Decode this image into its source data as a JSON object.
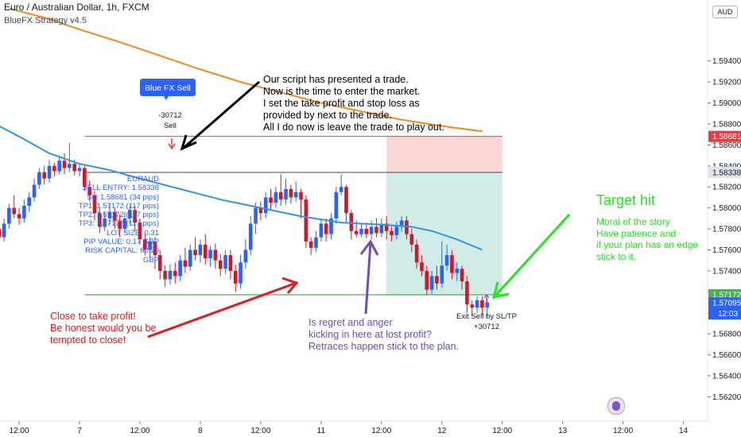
{
  "header": {
    "symbol_title": "Euro / Australian Dollar, 1h, FXCM",
    "indicator": "BlueFX Strategy v4.5",
    "currency_button": "AUD"
  },
  "signal": {
    "button": "Blue FX Sell",
    "value": "-30712",
    "label": "Sell"
  },
  "info_box": [
    "EURAUD",
    "SELL ENTRY: 1.58338",
    "SL: 1.58681 (34 pips)",
    "TP1: 1.57172 (117 pips)",
    "TP2: 1.57172 (117 pips)",
    "TP3: 1.57172 (117 pips)",
    "LOT SIZE: 0.31",
    "PIP VALUE: 0.17 GBP",
    "RISK CAPITAL: 60.29 GBP"
  ],
  "annotations": {
    "top_note": [
      "Our script has presented a trade.",
      "Now is the time to enter the market.",
      "I set the take profit and stop loss as",
      "provided by next to the trade.",
      "All I do now is leave the trade to play out."
    ],
    "red_note": [
      "Close to take profit!",
      "Be honest would you be",
      "tempted to close!"
    ],
    "purple_note": [
      "Is regret and anger",
      "kicking in here at lost profit?",
      "Retraces happen stick to the plan."
    ],
    "target_title": "Target hit",
    "green_note": [
      "Moral of the story",
      "Have patience and",
      "if your plan has an edge",
      "stick to it."
    ],
    "exit_label": "Exit Sell by SL/TP",
    "exit_value": "+30712"
  },
  "colors": {
    "up_candle": "#2962ff",
    "down_candle": "#d1172a",
    "ema_fast": "#3393e8",
    "ema_slow": "#f5891f",
    "stop_loss": "#f23645",
    "target": "#4caf50",
    "entry": "#434651",
    "annotation_red": "#e31b1b",
    "annotation_purple": "#6e4bb5",
    "annotation_green": "#22e622"
  },
  "chart_data": {
    "type": "candlestick",
    "y_axis": {
      "range": [
        1.5612,
        1.5992
      ],
      "ticks": [
        "1.59400",
        "1.59200",
        "1.59000",
        "1.58800",
        "1.58600",
        "1.58400",
        "1.58200",
        "1.58000",
        "1.57800",
        "1.57600",
        "1.57400",
        "1.57200",
        "1.57000",
        "1.56800",
        "1.56600",
        "1.56400",
        "1.56200"
      ]
    },
    "x_axis": {
      "ticks": [
        "12:00",
        "7",
        "12:00",
        "8",
        "12:00",
        "11",
        "12:00",
        "12",
        "12:00",
        "13",
        "12:00",
        "14"
      ],
      "tick_times": [
        -12,
        0,
        12,
        24,
        36,
        48,
        60,
        72,
        84,
        96,
        108,
        120
      ]
    },
    "price_levels": {
      "stop_loss": {
        "value": 1.58681,
        "label": "1.58681"
      },
      "entry": {
        "value": 1.58338,
        "label": "1.58338"
      },
      "take_profit": {
        "value": 1.57172,
        "label": "1.57172"
      },
      "last_price": {
        "value": 1.57095,
        "label": "1.57095"
      },
      "countdown": "12:03"
    },
    "candles": [
      [
        -27,
        1.5825,
        1.5808,
        1.5828,
        1.58
      ],
      [
        -26,
        1.5808,
        1.581,
        1.5818,
        1.5802
      ],
      [
        -25,
        1.581,
        1.5803,
        1.5814,
        1.5795
      ],
      [
        -24,
        1.5803,
        1.5792,
        1.581,
        1.5785
      ],
      [
        -23,
        1.5792,
        1.58,
        1.5805,
        1.5783
      ],
      [
        -22,
        1.58,
        1.5822,
        1.5826,
        1.5795
      ],
      [
        -21,
        1.5822,
        1.5832,
        1.5836,
        1.5815
      ],
      [
        -20,
        1.5832,
        1.5815,
        1.5838,
        1.5806
      ],
      [
        -19,
        1.5815,
        1.5805,
        1.582,
        1.58
      ],
      [
        -18,
        1.5805,
        1.5792,
        1.5812,
        1.5786
      ],
      [
        -17,
        1.5792,
        1.578,
        1.5796,
        1.5774
      ],
      [
        -16,
        1.578,
        1.5772,
        1.5786,
        1.5768
      ],
      [
        -15,
        1.5772,
        1.5785,
        1.579,
        1.5768
      ],
      [
        -14,
        1.5785,
        1.58,
        1.5804,
        1.578
      ],
      [
        -13,
        1.58,
        1.5794,
        1.5812,
        1.579
      ],
      [
        -12,
        1.5794,
        1.579,
        1.58,
        1.5784
      ],
      [
        -11,
        1.579,
        1.5802,
        1.5808,
        1.5786
      ],
      [
        -10,
        1.5802,
        1.581,
        1.5815,
        1.5796
      ],
      [
        -9,
        1.581,
        1.5822,
        1.5828,
        1.5806
      ],
      [
        -8,
        1.5822,
        1.5834,
        1.5838,
        1.5818
      ],
      [
        -7,
        1.5834,
        1.5828,
        1.584,
        1.5822
      ],
      [
        -6,
        1.5828,
        1.584,
        1.5846,
        1.5824
      ],
      [
        -5,
        1.584,
        1.5835,
        1.5843,
        1.583
      ],
      [
        -4,
        1.5835,
        1.5845,
        1.585,
        1.5832
      ],
      [
        -3,
        1.5845,
        1.5838,
        1.5852,
        1.5832
      ],
      [
        -2,
        1.5838,
        1.5842,
        1.5862,
        1.5834
      ],
      [
        -1,
        1.5842,
        1.5835,
        1.5846,
        1.5831
      ],
      [
        0,
        1.5835,
        1.5838,
        1.5842,
        1.583
      ],
      [
        1,
        1.5838,
        1.582,
        1.584,
        1.5816
      ],
      [
        2,
        1.582,
        1.5812,
        1.5826,
        1.5806
      ],
      [
        3,
        1.5812,
        1.5795,
        1.5816,
        1.5788
      ],
      [
        4,
        1.5795,
        1.5782,
        1.58,
        1.5776
      ],
      [
        5,
        1.5782,
        1.579,
        1.5796,
        1.5778
      ],
      [
        6,
        1.579,
        1.5796,
        1.5804,
        1.5784
      ],
      [
        7,
        1.5796,
        1.5788,
        1.58,
        1.578
      ],
      [
        8,
        1.5788,
        1.578,
        1.5794,
        1.5772
      ],
      [
        9,
        1.578,
        1.579,
        1.5796,
        1.5776
      ],
      [
        10,
        1.579,
        1.5798,
        1.5802,
        1.5785
      ],
      [
        11,
        1.5798,
        1.5786,
        1.5802,
        1.5778
      ],
      [
        12,
        1.5786,
        1.577,
        1.579,
        1.5765
      ],
      [
        13,
        1.577,
        1.576,
        1.5775,
        1.5755
      ],
      [
        14,
        1.576,
        1.5768,
        1.5772,
        1.5752
      ],
      [
        15,
        1.5768,
        1.5755,
        1.5772,
        1.5742
      ],
      [
        16,
        1.5755,
        1.574,
        1.576,
        1.5732
      ],
      [
        17,
        1.574,
        1.5732,
        1.5745,
        1.5725
      ],
      [
        18,
        1.5732,
        1.574,
        1.5746,
        1.5727
      ],
      [
        19,
        1.574,
        1.5735,
        1.5748,
        1.5728
      ],
      [
        20,
        1.5735,
        1.575,
        1.5755,
        1.573
      ],
      [
        21,
        1.575,
        1.5744,
        1.5762,
        1.5738
      ],
      [
        22,
        1.5744,
        1.576,
        1.5765,
        1.574
      ],
      [
        23,
        1.576,
        1.5755,
        1.5772,
        1.575
      ],
      [
        24,
        1.5755,
        1.5765,
        1.577,
        1.5748
      ],
      [
        25,
        1.5765,
        1.5752,
        1.5775,
        1.5746
      ],
      [
        26,
        1.5752,
        1.576,
        1.5764,
        1.5744
      ],
      [
        27,
        1.576,
        1.575,
        1.5766,
        1.5742
      ],
      [
        28,
        1.575,
        1.5742,
        1.5756,
        1.5735
      ],
      [
        29,
        1.5742,
        1.5755,
        1.576,
        1.5737
      ],
      [
        30,
        1.5755,
        1.574,
        1.576,
        1.5732
      ],
      [
        31,
        1.574,
        1.5728,
        1.5746,
        1.572
      ],
      [
        32,
        1.5728,
        1.5748,
        1.5755,
        1.5723
      ],
      [
        33,
        1.5748,
        1.576,
        1.577,
        1.5742
      ],
      [
        34,
        1.576,
        1.5785,
        1.5792,
        1.5755
      ],
      [
        35,
        1.5785,
        1.58,
        1.5805,
        1.5775
      ],
      [
        36,
        1.58,
        1.5795,
        1.5806,
        1.5788
      ],
      [
        37,
        1.5795,
        1.581,
        1.5815,
        1.579
      ],
      [
        38,
        1.581,
        1.5805,
        1.5818,
        1.5798
      ],
      [
        39,
        1.5805,
        1.5815,
        1.582,
        1.58
      ],
      [
        40,
        1.5815,
        1.5808,
        1.5832,
        1.5802
      ],
      [
        41,
        1.5808,
        1.5818,
        1.5828,
        1.5803
      ],
      [
        42,
        1.5818,
        1.581,
        1.5822,
        1.5804
      ],
      [
        43,
        1.581,
        1.5815,
        1.5825,
        1.5806
      ],
      [
        44,
        1.5815,
        1.5808,
        1.5818,
        1.579
      ],
      [
        45,
        1.5808,
        1.5768,
        1.5812,
        1.5762
      ],
      [
        46,
        1.5768,
        1.5762,
        1.5772,
        1.5755
      ],
      [
        47,
        1.5762,
        1.5772,
        1.5778,
        1.5758
      ],
      [
        48,
        1.5772,
        1.5785,
        1.579,
        1.5768
      ],
      [
        49,
        1.5785,
        1.5775,
        1.579,
        1.5768
      ],
      [
        50,
        1.5775,
        1.579,
        1.5795,
        1.577
      ],
      [
        51,
        1.579,
        1.5815,
        1.582,
        1.5785
      ],
      [
        52,
        1.5815,
        1.582,
        1.5832,
        1.5812
      ],
      [
        53,
        1.582,
        1.5795,
        1.5822,
        1.5785
      ],
      [
        54,
        1.5795,
        1.5778,
        1.5798,
        1.577
      ],
      [
        55,
        1.5778,
        1.5775,
        1.5788,
        1.5772
      ],
      [
        56,
        1.5775,
        1.578,
        1.5785,
        1.5772
      ],
      [
        57,
        1.578,
        1.5775,
        1.5786,
        1.5771
      ],
      [
        58,
        1.5775,
        1.5782,
        1.5788,
        1.577
      ],
      [
        59,
        1.5782,
        1.5776,
        1.579,
        1.5772
      ],
      [
        60,
        1.5776,
        1.5785,
        1.579,
        1.5772
      ],
      [
        61,
        1.5785,
        1.5778,
        1.5792,
        1.577
      ],
      [
        62,
        1.5778,
        1.5774,
        1.5782,
        1.5768
      ],
      [
        63,
        1.5774,
        1.5782,
        1.5787,
        1.577
      ],
      [
        64,
        1.5782,
        1.5788,
        1.5792,
        1.5777
      ],
      [
        65,
        1.5788,
        1.5775,
        1.5792,
        1.577
      ],
      [
        66,
        1.5775,
        1.5765,
        1.578,
        1.5758
      ],
      [
        67,
        1.5765,
        1.5748,
        1.577,
        1.5742
      ],
      [
        68,
        1.5748,
        1.574,
        1.5755,
        1.5735
      ],
      [
        69,
        1.574,
        1.5722,
        1.5745,
        1.5717
      ],
      [
        70,
        1.5722,
        1.5735,
        1.574,
        1.5718
      ],
      [
        71,
        1.5735,
        1.5728,
        1.5745,
        1.5722
      ],
      [
        72,
        1.5728,
        1.5745,
        1.5768,
        1.5724
      ],
      [
        73,
        1.5745,
        1.5755,
        1.5765,
        1.574
      ],
      [
        74,
        1.5755,
        1.5738,
        1.576,
        1.5732
      ],
      [
        75,
        1.5738,
        1.5742,
        1.5748,
        1.573
      ],
      [
        76,
        1.5742,
        1.573,
        1.5745,
        1.5722
      ],
      [
        77,
        1.573,
        1.5708,
        1.5735,
        1.57
      ],
      [
        78,
        1.5708,
        1.5705,
        1.5712,
        1.5697
      ],
      [
        79,
        1.5705,
        1.5712,
        1.5716,
        1.57
      ],
      [
        80,
        1.5712,
        1.5705,
        1.5716,
        1.5698
      ],
      [
        81,
        1.5705,
        1.571,
        1.5714,
        1.5696
      ]
    ],
    "series": [
      {
        "name": "fast moving average",
        "color": "#3393e8",
        "points": [
          [
            -27,
            1.5904
          ],
          [
            -20,
            1.5888
          ],
          [
            -12,
            1.5868
          ],
          [
            -6,
            1.5852
          ],
          [
            0,
            1.5842
          ],
          [
            6,
            1.5836
          ],
          [
            12,
            1.5828
          ],
          [
            20,
            1.5818
          ],
          [
            28,
            1.5808
          ],
          [
            36,
            1.58
          ],
          [
            44,
            1.5792
          ],
          [
            52,
            1.5786
          ],
          [
            60,
            1.5784
          ],
          [
            66,
            1.5782
          ],
          [
            70,
            1.5778
          ],
          [
            75,
            1.577
          ],
          [
            80,
            1.576
          ]
        ]
      },
      {
        "name": "slow moving average",
        "color": "#f5891f",
        "points": [
          [
            -14,
            1.599
          ],
          [
            -6,
            1.598
          ],
          [
            0,
            1.597
          ],
          [
            8,
            1.5958
          ],
          [
            16,
            1.5945
          ],
          [
            24,
            1.5932
          ],
          [
            32,
            1.592
          ],
          [
            40,
            1.591
          ],
          [
            48,
            1.59
          ],
          [
            56,
            1.5892
          ],
          [
            64,
            1.5884
          ],
          [
            72,
            1.5878
          ],
          [
            80,
            1.5873
          ]
        ]
      }
    ]
  }
}
